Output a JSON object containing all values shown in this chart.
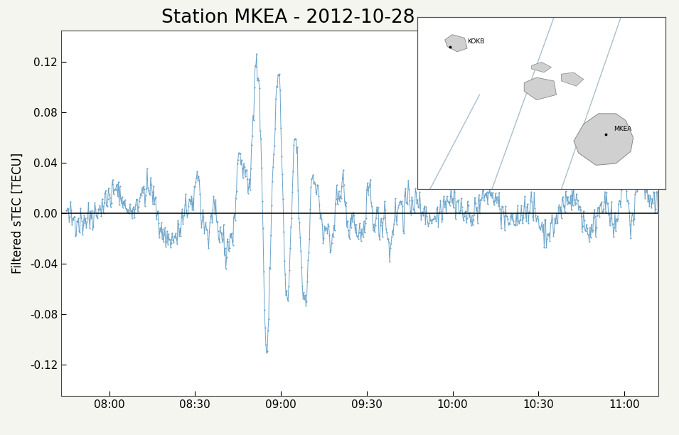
{
  "title": "Station MKEA - 2012-10-28",
  "ylabel": "Filtered sTEC [TECU]",
  "ylim": [
    -0.145,
    0.145
  ],
  "yticks": [
    -0.12,
    -0.08,
    -0.04,
    0.0,
    0.04,
    0.08,
    0.12
  ],
  "xtick_labels": [
    "08:00",
    "08:30",
    "09:00",
    "09:30",
    "10:00",
    "10:30",
    "11:00"
  ],
  "line_color": "#6aa3c8",
  "marker_color": "#6aa3c8",
  "background_color": "#f5f5f0",
  "plot_bg_color": "#ffffff",
  "zero_line_color": "#111111",
  "title_fontsize": 19,
  "label_fontsize": 12,
  "tick_fontsize": 11,
  "seed": 42,
  "inset_island_color": "#d0d0d0",
  "inset_edge_color": "#888888",
  "inset_line_color": "#aabfcc",
  "inset_bg": "#ffffff"
}
